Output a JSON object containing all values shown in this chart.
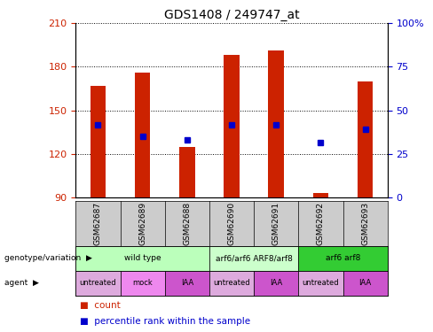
{
  "title": "GDS1408 / 249747_at",
  "samples": [
    "GSM62687",
    "GSM62689",
    "GSM62688",
    "GSM62690",
    "GSM62691",
    "GSM62692",
    "GSM62693"
  ],
  "bar_values": [
    167,
    176,
    125,
    188,
    191,
    93,
    170
  ],
  "bar_base": 90,
  "percentile_values": [
    140,
    132,
    130,
    140,
    140,
    128,
    137
  ],
  "ylim_left": [
    90,
    210
  ],
  "ylim_right": [
    0,
    100
  ],
  "yticks_left": [
    90,
    120,
    150,
    180,
    210
  ],
  "yticks_right": [
    0,
    25,
    50,
    75,
    100
  ],
  "ytick_labels_right": [
    "0",
    "25",
    "50",
    "75",
    "100%"
  ],
  "bar_color": "#cc2200",
  "marker_color": "#0000cc",
  "genotype_rows": [
    {
      "label": "wild type",
      "start": 0,
      "end": 3,
      "color": "#bbffbb"
    },
    {
      "label": "arf6/arf6 ARF8/arf8",
      "start": 3,
      "end": 5,
      "color": "#ccffcc"
    },
    {
      "label": "arf6 arf8",
      "start": 5,
      "end": 7,
      "color": "#33cc33"
    }
  ],
  "agent_rows": [
    {
      "label": "untreated",
      "start": 0,
      "end": 1,
      "color": "#ddaadd"
    },
    {
      "label": "mock",
      "start": 1,
      "end": 2,
      "color": "#ee88ee"
    },
    {
      "label": "IAA",
      "start": 2,
      "end": 3,
      "color": "#cc55cc"
    },
    {
      "label": "untreated",
      "start": 3,
      "end": 4,
      "color": "#ddaadd"
    },
    {
      "label": "IAA",
      "start": 4,
      "end": 5,
      "color": "#cc55cc"
    },
    {
      "label": "untreated",
      "start": 5,
      "end": 6,
      "color": "#ddaadd"
    },
    {
      "label": "IAA",
      "start": 6,
      "end": 7,
      "color": "#cc55cc"
    }
  ],
  "left_axis_color": "#cc2200",
  "right_axis_color": "#0000cc",
  "bar_width": 0.35,
  "xtick_bg": "#cccccc",
  "figure_bg": "#ffffff"
}
